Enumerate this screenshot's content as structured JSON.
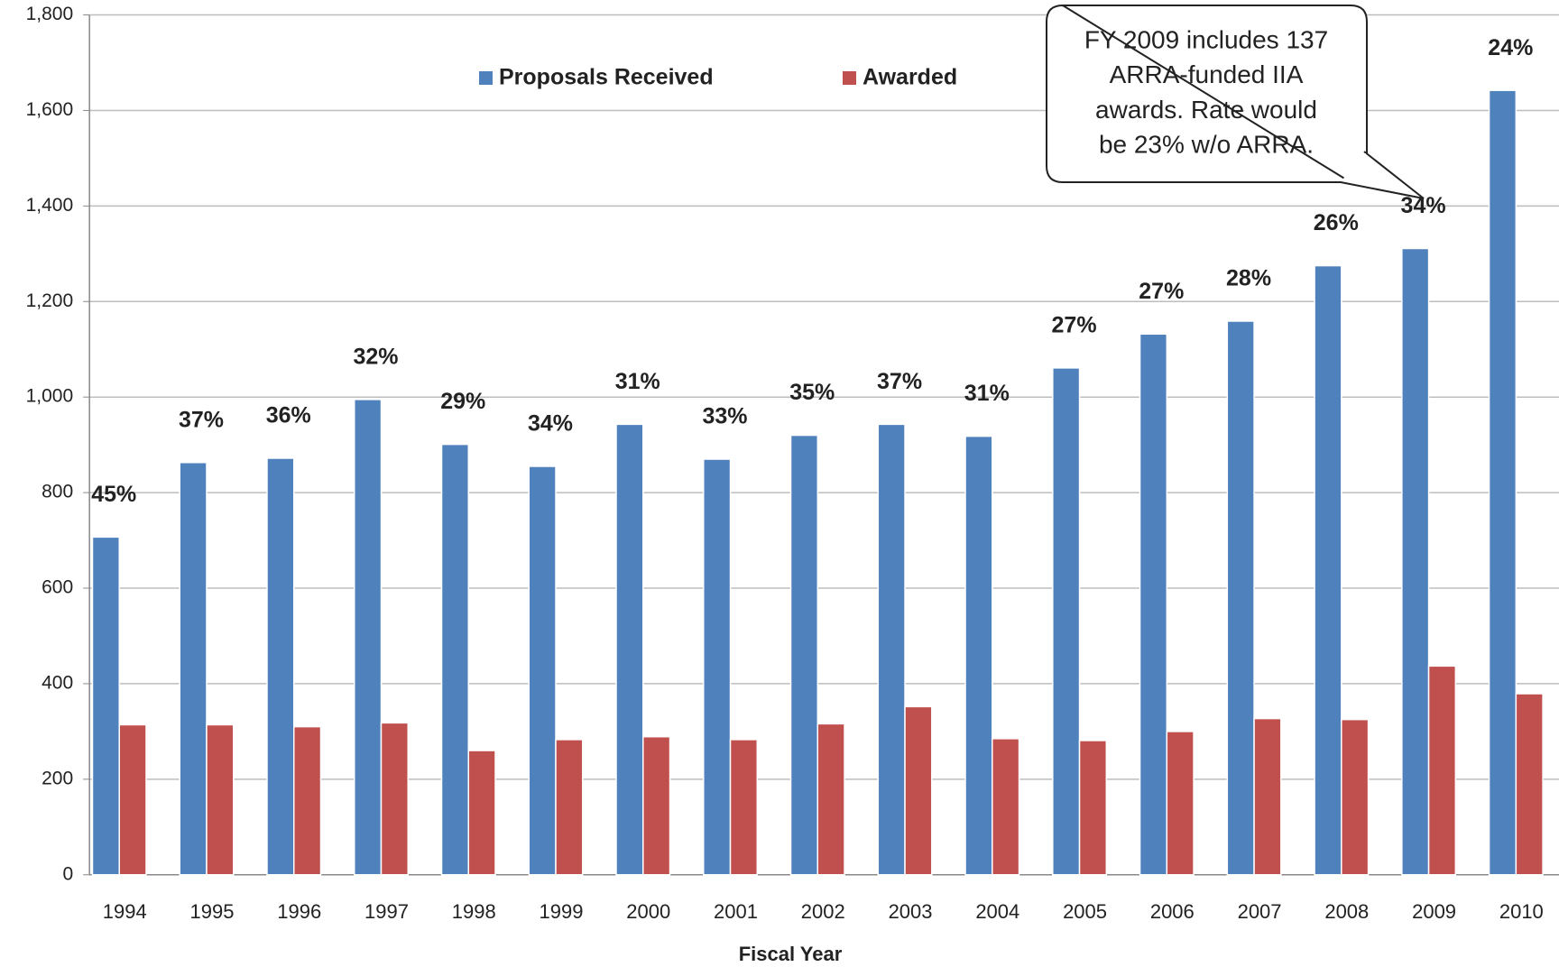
{
  "chart_data": {
    "type": "bar",
    "x_label": "Fiscal Year",
    "categories": [
      "1994",
      "1995",
      "1996",
      "1997",
      "1998",
      "1999",
      "2000",
      "2001",
      "2002",
      "2003",
      "2004",
      "2005",
      "2006",
      "2007",
      "2008",
      "2009",
      "2010"
    ],
    "series": [
      {
        "name": "Proposals Received",
        "color": "#4f81bd",
        "values": [
          707,
          863,
          872,
          995,
          901,
          855,
          943,
          870,
          920,
          943,
          918,
          1061,
          1132,
          1159,
          1275,
          1311,
          1642
        ]
      },
      {
        "name": "Awarded",
        "color": "#c0504d",
        "values": [
          314,
          314,
          310,
          318,
          260,
          283,
          289,
          283,
          316,
          352,
          285,
          281,
          300,
          327,
          325,
          437,
          379
        ]
      }
    ],
    "rates": {
      "values": [
        45,
        37,
        36,
        32,
        29,
        34,
        31,
        33,
        35,
        37,
        31,
        27,
        27,
        28,
        26,
        34,
        24
      ],
      "value_labels": [
        "45%",
        "37%",
        "36%",
        "32%",
        "29%",
        "34%",
        "31%",
        "33%",
        "35%",
        "37%",
        "31%",
        "27%",
        "27%",
        "28%",
        "26%",
        "34%",
        "24%"
      ]
    },
    "annotation": [
      "FY 2009 includes 137",
      "ARRA-funded IIA",
      "awards.  Rate would",
      "be 23% w/o ARRA."
    ],
    "ylim": [
      0,
      1800
    ],
    "yticks": [
      0,
      200,
      400,
      600,
      800,
      1000,
      1200,
      1400,
      1600,
      {
        "value": 1800,
        "label": "1,800"
      }
    ],
    "ytick_labels": [
      "0",
      "200",
      "400",
      "600",
      "800",
      "1,000",
      "1,200",
      "1,400",
      "1,600"
    ],
    "grid": true,
    "legend": "top"
  }
}
